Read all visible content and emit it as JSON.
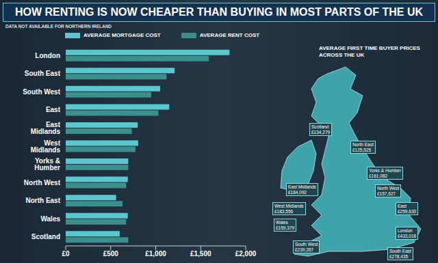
{
  "chart_data": {
    "type": "bar",
    "orientation": "horizontal",
    "title": "HOW RENTING IS NOW CHEAPER THAN BUYING IN MOST PARTS OF THE UK",
    "subtitle": "DATA NOT AVAILABLE FOR NORTHERN IRELAND",
    "categories": [
      "London",
      "South East",
      "South West",
      "East",
      "East Midlands",
      "West Midlands",
      "Yorks & Humber",
      "North West",
      "North East",
      "Wales",
      "Scotland"
    ],
    "series": [
      {
        "name": "AVERAGE MORTGAGE COST",
        "color": "#5cc6cf",
        "values": [
          1820,
          1210,
          1050,
          1150,
          800,
          806,
          695,
          690,
          560,
          690,
          600
        ]
      },
      {
        "name": "AVERAGE RENT COST",
        "color": "#3b8f8c",
        "values": [
          1590,
          1120,
          950,
          1030,
          735,
          775,
          695,
          672,
          632,
          672,
          695
        ]
      }
    ],
    "xlim": [
      0,
      2000
    ],
    "xticks": [
      {
        "value": 0,
        "label": "£0"
      },
      {
        "value": 500,
        "label": "£500"
      },
      {
        "value": 1000,
        "label": "£1,000"
      },
      {
        "value": 1500,
        "label": "£1,500"
      },
      {
        "value": 2000,
        "label": "£2,000"
      }
    ],
    "grid": false
  },
  "map": {
    "title": "AVERAGE FIRST TIME BUYER PRICES ACROSS THE UK",
    "regions": [
      {
        "name": "Scotland",
        "price": "£134,279"
      },
      {
        "name": "North East",
        "price": "£125,525"
      },
      {
        "name": "Yorks & Humber",
        "price": "£161,082"
      },
      {
        "name": "North West",
        "price": "£157,627"
      },
      {
        "name": "East Midlands",
        "price": "£184,092"
      },
      {
        "name": "West Midlands",
        "price": "£183,556"
      },
      {
        "name": "Wales",
        "price": "£159,379"
      },
      {
        "name": "East",
        "price": "£259,630"
      },
      {
        "name": "South West",
        "price": "£239,357"
      },
      {
        "name": "London",
        "price": "£433,018"
      },
      {
        "name": "South East",
        "price": "£278,435"
      }
    ]
  }
}
